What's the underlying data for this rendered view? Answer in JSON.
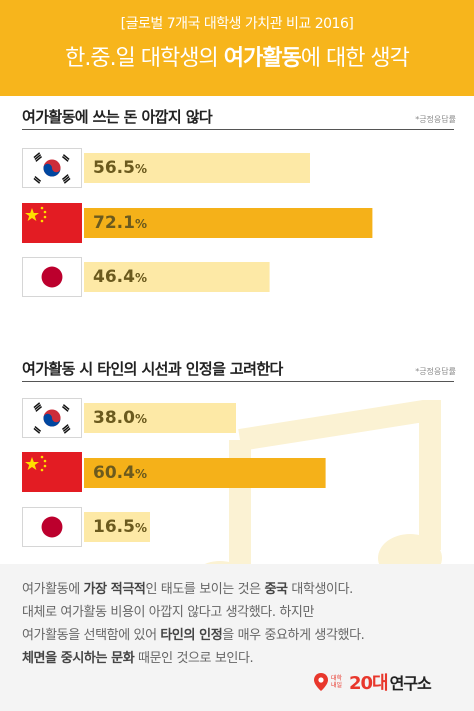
{
  "header": {
    "subtitle": "[글로벌 7개국 대학생 가치관 비교 2016]",
    "title_prefix": "한.중.일 대학생의 ",
    "title_bold": "여가활동",
    "title_suffix": "에 대한 생각"
  },
  "colors": {
    "header": "#f7b51c",
    "bar_highlight": "#f5b119",
    "bar_normal": "#fde9a6",
    "text_value": "#6b5a1e",
    "logo": "#e8372c"
  },
  "chart_data": [
    {
      "type": "bar",
      "orientation": "horizontal",
      "title": "여가활동에 쓰는 돈 아깝지 않다",
      "note": "*긍정응답률",
      "categories": [
        "Korea",
        "China",
        "Japan"
      ],
      "values": [
        56.5,
        72.1,
        46.4
      ],
      "labels": [
        "56.5",
        "72.1",
        "46.4"
      ],
      "unit": "%",
      "highlight": "China"
    },
    {
      "type": "bar",
      "orientation": "horizontal",
      "title": "여가활동 시 타인의 시선과 인정을 고려한다",
      "note": "*긍정응답률",
      "categories": [
        "Korea",
        "China",
        "Japan"
      ],
      "values": [
        38.0,
        60.4,
        16.5
      ],
      "labels": [
        "38.0",
        "60.4",
        "16.5"
      ],
      "unit": "%",
      "highlight": "China"
    }
  ],
  "description": {
    "l1_a": "여가활동에 ",
    "l1_b": "가장 적극적",
    "l1_c": "인 태도를 보이는 것은 ",
    "l1_d": "중국",
    "l1_e": " 대학생이다.",
    "l2": "대체로 여가활동 비용이 아깝지 않다고 생각했다. 하지만",
    "l3_a": "여가활동을 선택함에 있어 ",
    "l3_b": "타인의 인정",
    "l3_c": "을 매우 중요하게 생각했다.",
    "l4_a": "체면을 중시하는 문화",
    "l4_b": " 때문인 것으로 보인다."
  },
  "logo": {
    "small_line1": "대학",
    "small_line2": "내일",
    "big": "20대",
    "rest": "연구소"
  }
}
